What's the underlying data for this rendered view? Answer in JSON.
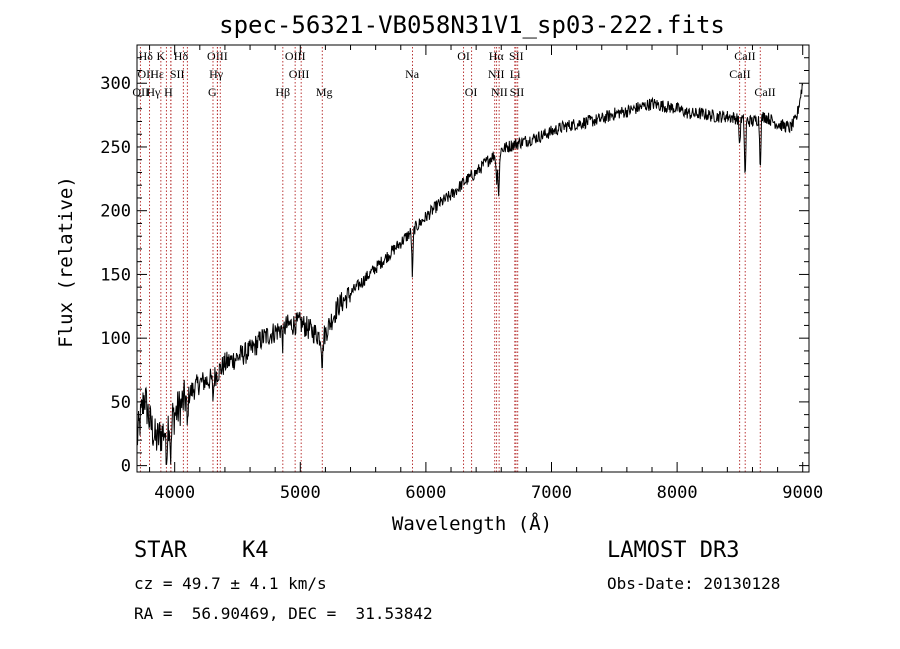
{
  "chart_data": {
    "type": "line",
    "title": "spec-56321-VB058N31V1_sp03-222.fits",
    "xlabel": "Wavelength (Å)",
    "ylabel": "Flux (relative)",
    "xlim": [
      3700,
      9050
    ],
    "ylim": [
      -5,
      330
    ],
    "xticks": [
      4000,
      5000,
      6000,
      7000,
      8000,
      9000
    ],
    "yticks": [
      0,
      50,
      100,
      150,
      200,
      250,
      300
    ],
    "spectrum_anchors": [
      [
        3700,
        20
      ],
      [
        3760,
        55
      ],
      [
        3800,
        35
      ],
      [
        3850,
        20
      ],
      [
        3900,
        25
      ],
      [
        3950,
        35
      ],
      [
        4000,
        40
      ],
      [
        4100,
        55
      ],
      [
        4200,
        65
      ],
      [
        4300,
        68
      ],
      [
        4400,
        80
      ],
      [
        4500,
        85
      ],
      [
        4600,
        90
      ],
      [
        4700,
        100
      ],
      [
        4800,
        105
      ],
      [
        4900,
        110
      ],
      [
        5000,
        112
      ],
      [
        5100,
        105
      ],
      [
        5180,
        100
      ],
      [
        5300,
        125
      ],
      [
        5400,
        135
      ],
      [
        5500,
        145
      ],
      [
        5600,
        155
      ],
      [
        5700,
        165
      ],
      [
        5800,
        175
      ],
      [
        5900,
        185
      ],
      [
        6000,
        195
      ],
      [
        6100,
        205
      ],
      [
        6200,
        212
      ],
      [
        6300,
        222
      ],
      [
        6400,
        230
      ],
      [
        6500,
        240
      ],
      [
        6600,
        248
      ],
      [
        6700,
        252
      ],
      [
        6800,
        255
      ],
      [
        6900,
        258
      ],
      [
        7000,
        262
      ],
      [
        7100,
        266
      ],
      [
        7200,
        268
      ],
      [
        7300,
        270
      ],
      [
        7400,
        272
      ],
      [
        7500,
        276
      ],
      [
        7600,
        278
      ],
      [
        7700,
        281
      ],
      [
        7800,
        284
      ],
      [
        7900,
        282
      ],
      [
        8000,
        280
      ],
      [
        8100,
        276
      ],
      [
        8200,
        276
      ],
      [
        8300,
        274
      ],
      [
        8400,
        274
      ],
      [
        8500,
        272
      ],
      [
        8600,
        270
      ],
      [
        8700,
        274
      ],
      [
        8800,
        268
      ],
      [
        8900,
        265
      ],
      [
        8950,
        272
      ],
      [
        9000,
        300
      ]
    ],
    "absorption_features": [
      [
        3934,
        40
      ],
      [
        3969,
        35
      ],
      [
        4101,
        25
      ],
      [
        4305,
        15
      ],
      [
        4861,
        12
      ],
      [
        5175,
        20
      ],
      [
        5893,
        35
      ],
      [
        6563,
        20
      ],
      [
        6580,
        35
      ],
      [
        8498,
        20
      ],
      [
        8542,
        45
      ],
      [
        8662,
        35
      ]
    ],
    "spectral_lines": [
      {
        "label": "Hδ",
        "row": 0,
        "label_wl": 3770,
        "line_wl": 3800
      },
      {
        "label": "K",
        "row": 0,
        "label_wl": 3890,
        "line_wl": 3934
      },
      {
        "label": "Hδ",
        "row": 0,
        "label_wl": 4050,
        "line_wl": 4101
      },
      {
        "label": "OIII",
        "row": 0,
        "label_wl": 4340,
        "line_wl": 4363
      },
      {
        "label": "OIII",
        "row": 0,
        "label_wl": 4960,
        "line_wl": 4959
      },
      {
        "label": "OI",
        "row": 0,
        "label_wl": 6300,
        "line_wl": 6300
      },
      {
        "label": "Hα",
        "row": 0,
        "label_wl": 6560,
        "line_wl": 6563
      },
      {
        "label": "SII",
        "row": 0,
        "label_wl": 6720,
        "line_wl": 6717
      },
      {
        "label": "CaII",
        "row": 0,
        "label_wl": 8540,
        "line_wl": 8542
      },
      {
        "label": "OII",
        "row": 1,
        "label_wl": 3770,
        "line_wl": 3727
      },
      {
        "label": "Hε",
        "row": 1,
        "label_wl": 3860,
        "line_wl": 3970
      },
      {
        "label": "SII",
        "row": 1,
        "label_wl": 4020,
        "line_wl": 4069
      },
      {
        "label": "Hγ",
        "row": 1,
        "label_wl": 4330,
        "line_wl": 4340
      },
      {
        "label": "OIII",
        "row": 1,
        "label_wl": 4990,
        "line_wl": 5007
      },
      {
        "label": "Na",
        "row": 1,
        "label_wl": 5890,
        "line_wl": 5893
      },
      {
        "label": "NII",
        "row": 1,
        "label_wl": 6560,
        "line_wl": 6548
      },
      {
        "label": "Li",
        "row": 1,
        "label_wl": 6710,
        "line_wl": 6708
      },
      {
        "label": "CaII",
        "row": 1,
        "label_wl": 8500,
        "line_wl": 8498
      },
      {
        "label": "OII",
        "row": 2,
        "label_wl": 3730,
        "line_wl": 3890
      },
      {
        "label": "Hγ",
        "row": 2,
        "label_wl": 3830,
        "line_wl": 4340
      },
      {
        "label": "H",
        "row": 2,
        "label_wl": 3950,
        "line_wl": 3969
      },
      {
        "label": "G",
        "row": 2,
        "label_wl": 4300,
        "line_wl": 4305
      },
      {
        "label": "Hβ",
        "row": 2,
        "label_wl": 4860,
        "line_wl": 4861
      },
      {
        "label": "Mg",
        "row": 2,
        "label_wl": 5190,
        "line_wl": 5175
      },
      {
        "label": "OI",
        "row": 2,
        "label_wl": 6360,
        "line_wl": 6364
      },
      {
        "label": "NII",
        "row": 2,
        "label_wl": 6585,
        "line_wl": 6583
      },
      {
        "label": "SII",
        "row": 2,
        "label_wl": 6725,
        "line_wl": 6731
      },
      {
        "label": "CaII",
        "row": 2,
        "label_wl": 8700,
        "line_wl": 8662
      }
    ]
  },
  "info": {
    "class": "STAR",
    "subclass": "K4",
    "survey": "LAMOST DR3",
    "cz": "cz = 49.7 ± 4.1 km/s",
    "obs_date": "Obs-Date: 20130128",
    "coords": "RA =  56.90469, DEC =  31.53842"
  },
  "colors": {
    "line_marker": "#b22222",
    "spectrum": "#000000",
    "background": "#ffffff"
  }
}
